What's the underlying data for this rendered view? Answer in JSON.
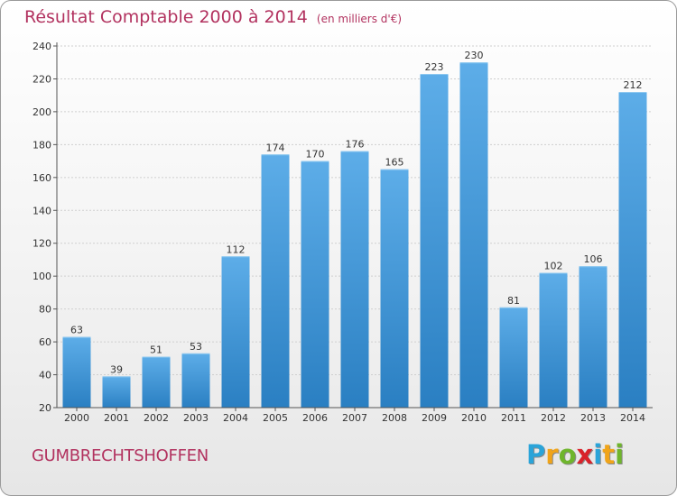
{
  "header": {
    "title": "Résultat Comptable 2000 à 2014",
    "unit": "(en milliers d'€)"
  },
  "footer": {
    "commune": "GUMBRECHTSHOFFEN",
    "logo_letters": [
      "P",
      "r",
      "o",
      "x",
      "i",
      "t",
      "i"
    ],
    "logo_colors": [
      "#2aa4d9",
      "#f0a419",
      "#6fb52c",
      "#d9222a",
      "#2aa4d9",
      "#f0a419",
      "#6fb52c"
    ]
  },
  "chart_data": {
    "type": "bar",
    "title": "Résultat Comptable 2000 à 2014",
    "subtitle": "(en milliers d'€)",
    "categories": [
      "2000",
      "2001",
      "2002",
      "2003",
      "2004",
      "2005",
      "2006",
      "2007",
      "2008",
      "2009",
      "2010",
      "2011",
      "2012",
      "2013",
      "2014"
    ],
    "values": [
      63,
      39,
      51,
      53,
      112,
      174,
      170,
      176,
      165,
      223,
      230,
      81,
      102,
      106,
      212
    ],
    "ylim": [
      20,
      240
    ],
    "yticks": [
      20,
      40,
      60,
      80,
      100,
      120,
      140,
      160,
      180,
      200,
      220,
      240
    ],
    "grid": true,
    "bar_color_top": "#5dade8",
    "bar_color_bottom": "#2a7fc2",
    "xlabel": "",
    "ylabel": ""
  }
}
